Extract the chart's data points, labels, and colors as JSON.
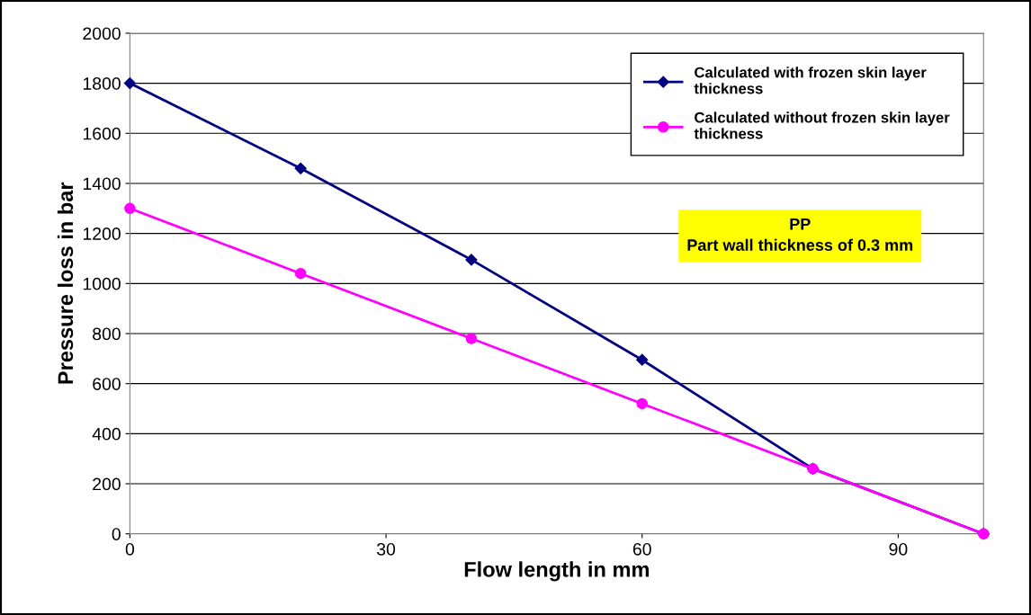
{
  "chart_data": {
    "type": "line",
    "xlabel": "Flow length in mm",
    "ylabel": "Pressure loss in bar",
    "x": [
      0,
      20,
      40,
      60,
      80,
      100
    ],
    "series": [
      {
        "name": "Calculated with frozen skin layer thickness",
        "color": "#000080",
        "marker": "diamond",
        "values": [
          1800,
          1460,
          1095,
          695,
          260,
          0
        ]
      },
      {
        "name": "Calculated without frozen skin layer thickness",
        "color": "#ff00ff",
        "marker": "circle",
        "values": [
          1300,
          1040,
          780,
          520,
          260,
          0
        ]
      }
    ],
    "xlim": [
      0,
      100
    ],
    "xticks": [
      0,
      30,
      60,
      90
    ],
    "ylim": [
      0,
      2000
    ],
    "yticks": [
      0,
      200,
      400,
      600,
      800,
      1000,
      1200,
      1400,
      1600,
      1800,
      2000
    ],
    "grid": "y",
    "legend": "top right",
    "line_style": "solid",
    "annotations": [
      "PP\nPart wall thickness of 0.3 mm"
    ]
  }
}
